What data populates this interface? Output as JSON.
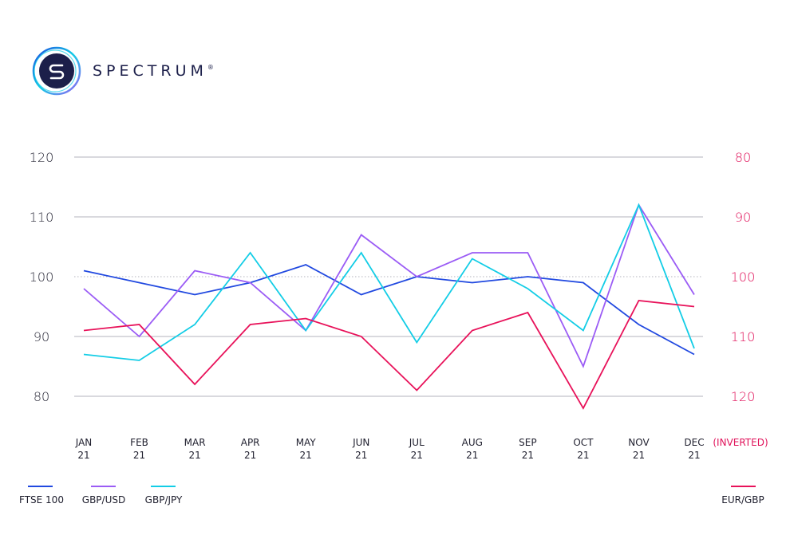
{
  "brand": {
    "name": "SPECTRUM",
    "mark": "®",
    "logo_icon": "spectrum-s-logo-icon"
  },
  "colors": {
    "ftse": "#2149e0",
    "gbpusd": "#9b5cf5",
    "gbpjpy": "#13cde6",
    "eurgbp": "#e8125a",
    "grid": "#9a9aa8",
    "right_axis": "#e0125a"
  },
  "chart_data": {
    "type": "line",
    "categories": [
      "JAN 21",
      "FEB 21",
      "MAR 21",
      "APR 21",
      "MAY 21",
      "JUN 21",
      "JUL 21",
      "AUG 21",
      "SEP 21",
      "OCT 21",
      "NOV 21",
      "DEC 21"
    ],
    "category_lines": [
      [
        "JAN",
        "21"
      ],
      [
        "FEB",
        "21"
      ],
      [
        "MAR",
        "21"
      ],
      [
        "APR",
        "21"
      ],
      [
        "MAY",
        "21"
      ],
      [
        "JUN",
        "21"
      ],
      [
        "JUL",
        "21"
      ],
      [
        "AUG",
        "21"
      ],
      [
        "SEP",
        "21"
      ],
      [
        "OCT",
        "21"
      ],
      [
        "NOV",
        "21"
      ],
      [
        "DEC",
        "21"
      ]
    ],
    "y_left": {
      "ticks": [
        "120",
        "110",
        "100",
        "90",
        "80"
      ],
      "ylim": [
        80,
        120
      ]
    },
    "y_right": {
      "ticks": [
        "80",
        "90",
        "100",
        "110",
        "120"
      ],
      "ylim": [
        80,
        120
      ],
      "inverted": true,
      "label": "(INVERTED)"
    },
    "grid": true,
    "legend_placement": "bottom",
    "series": [
      {
        "name": "FTSE 100",
        "axis": "left",
        "color_key": "ftse",
        "values": [
          101,
          99,
          97,
          99,
          102,
          97,
          100,
          99,
          100,
          99,
          92,
          87
        ]
      },
      {
        "name": "GBP/USD",
        "axis": "left",
        "color_key": "gbpusd",
        "values": [
          98,
          90,
          101,
          99,
          91,
          107,
          100,
          104,
          104,
          85,
          112,
          97
        ]
      },
      {
        "name": "GBP/JPY",
        "axis": "left",
        "color_key": "gbpjpy",
        "values": [
          87,
          86,
          92,
          104,
          91,
          104,
          89,
          103,
          98,
          91,
          112,
          88
        ]
      },
      {
        "name": "EUR/GBP",
        "axis": "right",
        "color_key": "eurgbp",
        "values": [
          109,
          108,
          118,
          108,
          107,
          110,
          119,
          109,
          106,
          122,
          104,
          105
        ]
      }
    ]
  }
}
